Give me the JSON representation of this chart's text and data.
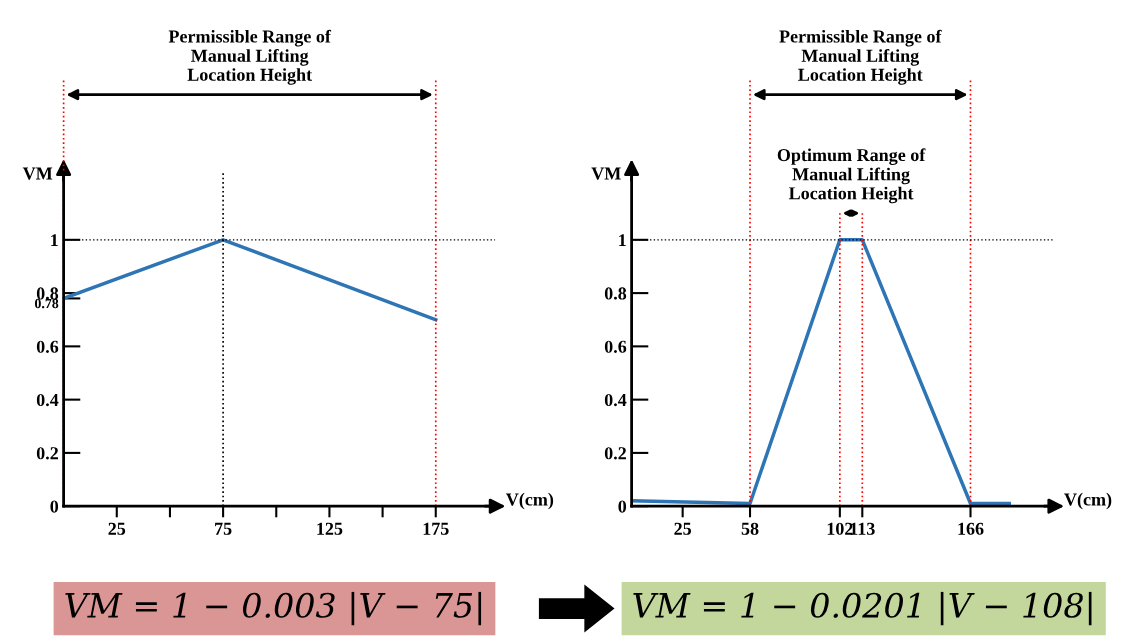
{
  "chart_data": [
    {
      "type": "line",
      "xlabel": "V(cm)",
      "ylabel": "VM",
      "xlim": [
        0,
        203
      ],
      "ylim": [
        0,
        1.25
      ],
      "xticks": [
        25,
        {
          "value": 50,
          "label": null
        },
        75,
        {
          "value": 100,
          "label": null
        },
        125,
        {
          "value": 150,
          "label": null
        },
        175
      ],
      "yticks": [
        0,
        0.2,
        0.4,
        0.6,
        {
          "value": 0.78,
          "label": "0.78"
        },
        0.8,
        1
      ],
      "series": [
        {
          "color": "#2e75b6",
          "x": [
            0,
            75,
            175
          ],
          "values": [
            0.78,
            1,
            0.7
          ]
        }
      ],
      "ref_lines": [
        {
          "axis": "x",
          "value": 0,
          "color": "#ff0000",
          "line_style": "dotted"
        },
        {
          "axis": "x",
          "value": 175,
          "color": "#ff0000",
          "line_style": "dotted"
        },
        {
          "axis": "y",
          "value": 1,
          "color": "#000000",
          "line_style": "dotted"
        },
        {
          "axis": "x",
          "value": 75,
          "color": "#000000",
          "line_style": "dotted"
        }
      ],
      "annotations": [
        "Permissible Range of\nManual Lifting\nLocation Height",
        "VM = 1 − 0.003 |V − 75|"
      ],
      "grid": false,
      "marker": "none",
      "line_style": "solid"
    },
    {
      "type": "line",
      "xlabel": "V(cm)",
      "ylabel": "VM",
      "xlim": [
        0,
        207
      ],
      "ylim": [
        0,
        1.25
      ],
      "xticks": [
        25,
        58,
        102,
        113,
        166
      ],
      "yticks": [
        0,
        0.2,
        0.4,
        0.6,
        0.8,
        1
      ],
      "series": [
        {
          "color": "#2e75b6",
          "x": [
            0,
            58,
            102,
            113,
            166,
            185
          ],
          "values": [
            0.02,
            0.01,
            1,
            1,
            0.01,
            0.01
          ]
        }
      ],
      "ref_lines": [
        {
          "axis": "x",
          "value": 58,
          "color": "#ff0000",
          "line_style": "dotted"
        },
        {
          "axis": "x",
          "value": 166,
          "color": "#ff0000",
          "line_style": "dotted"
        },
        {
          "axis": "x",
          "value": 102,
          "color": "#ff0000",
          "line_style": "dotted"
        },
        {
          "axis": "x",
          "value": 113,
          "color": "#ff0000",
          "line_style": "dotted"
        },
        {
          "axis": "y",
          "value": 1,
          "color": "#000000",
          "line_style": "dotted"
        }
      ],
      "annotations": [
        "Permissible Range of\nManual Lifting\nLocation Height",
        "Optimum Range of\nManual Lifting\nLocation Height",
        "VM = 1 − 0.0201 |V − 108|"
      ],
      "grid": false,
      "marker": "none",
      "line_style": "solid"
    }
  ]
}
